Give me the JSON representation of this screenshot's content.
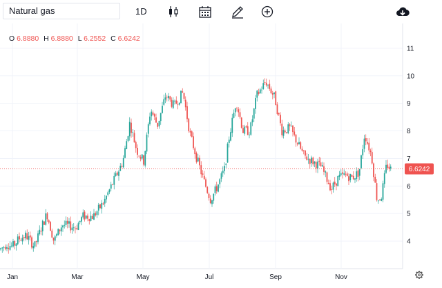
{
  "toolbar": {
    "symbol": "Natural gas",
    "interval": "1D",
    "icons": [
      "candlestick-icon",
      "calendar-icon",
      "pencil-icon",
      "add-circle-icon",
      "cloud-download-icon"
    ]
  },
  "legend": {
    "open_label": "O",
    "open": "6.8880",
    "high_label": "H",
    "high": "6.8880",
    "low_label": "L",
    "low": "6.2552",
    "close_label": "C",
    "close": "6.6242"
  },
  "price_label": "6.6242",
  "colors": {
    "up": "#26a69a",
    "down": "#ef5350",
    "grid": "#f0f3fa"
  },
  "chart_data": {
    "type": "candlestick",
    "ylim": [
      3.0,
      11.9
    ],
    "yticks": [
      4,
      5,
      6,
      7,
      8,
      9,
      10,
      11
    ],
    "month_labels": [
      "Jan",
      "Mar",
      "May",
      "Jul",
      "Sep",
      "Nov"
    ],
    "last_price": 6.6242,
    "grid": true,
    "series_path": [
      [
        0,
        3.7
      ],
      [
        10,
        3.9
      ],
      [
        18,
        3.8
      ],
      [
        28,
        4.1
      ],
      [
        38,
        4.2
      ],
      [
        50,
        3.8
      ],
      [
        60,
        4.5
      ],
      [
        68,
        5.0
      ],
      [
        78,
        4.0
      ],
      [
        90,
        4.6
      ],
      [
        110,
        4.5
      ],
      [
        120,
        4.9
      ],
      [
        135,
        4.9
      ],
      [
        150,
        5.4
      ],
      [
        165,
        6.2
      ],
      [
        178,
        6.9
      ],
      [
        188,
        8.3
      ],
      [
        198,
        7.3
      ],
      [
        208,
        6.9
      ],
      [
        218,
        8.8
      ],
      [
        228,
        8.2
      ],
      [
        240,
        9.3
      ],
      [
        252,
        8.9
      ],
      [
        265,
        9.4
      ],
      [
        275,
        7.9
      ],
      [
        285,
        7.0
      ],
      [
        295,
        6.2
      ],
      [
        305,
        5.5
      ],
      [
        315,
        6.0
      ],
      [
        325,
        6.6
      ],
      [
        332,
        7.8
      ],
      [
        342,
        9.1
      ],
      [
        352,
        8.0
      ],
      [
        362,
        8.0
      ],
      [
        372,
        9.3
      ],
      [
        385,
        9.8
      ],
      [
        398,
        9.2
      ],
      [
        408,
        8.0
      ],
      [
        420,
        8.1
      ],
      [
        430,
        7.6
      ],
      [
        440,
        7.1
      ],
      [
        452,
        6.9
      ],
      [
        465,
        6.7
      ],
      [
        480,
        5.9
      ],
      [
        490,
        6.3
      ],
      [
        500,
        6.4
      ],
      [
        510,
        6.3
      ],
      [
        520,
        6.5
      ],
      [
        528,
        7.9
      ],
      [
        538,
        7.1
      ],
      [
        546,
        5.5
      ],
      [
        552,
        5.6
      ],
      [
        560,
        6.8
      ],
      [
        566,
        6.6
      ]
    ]
  }
}
